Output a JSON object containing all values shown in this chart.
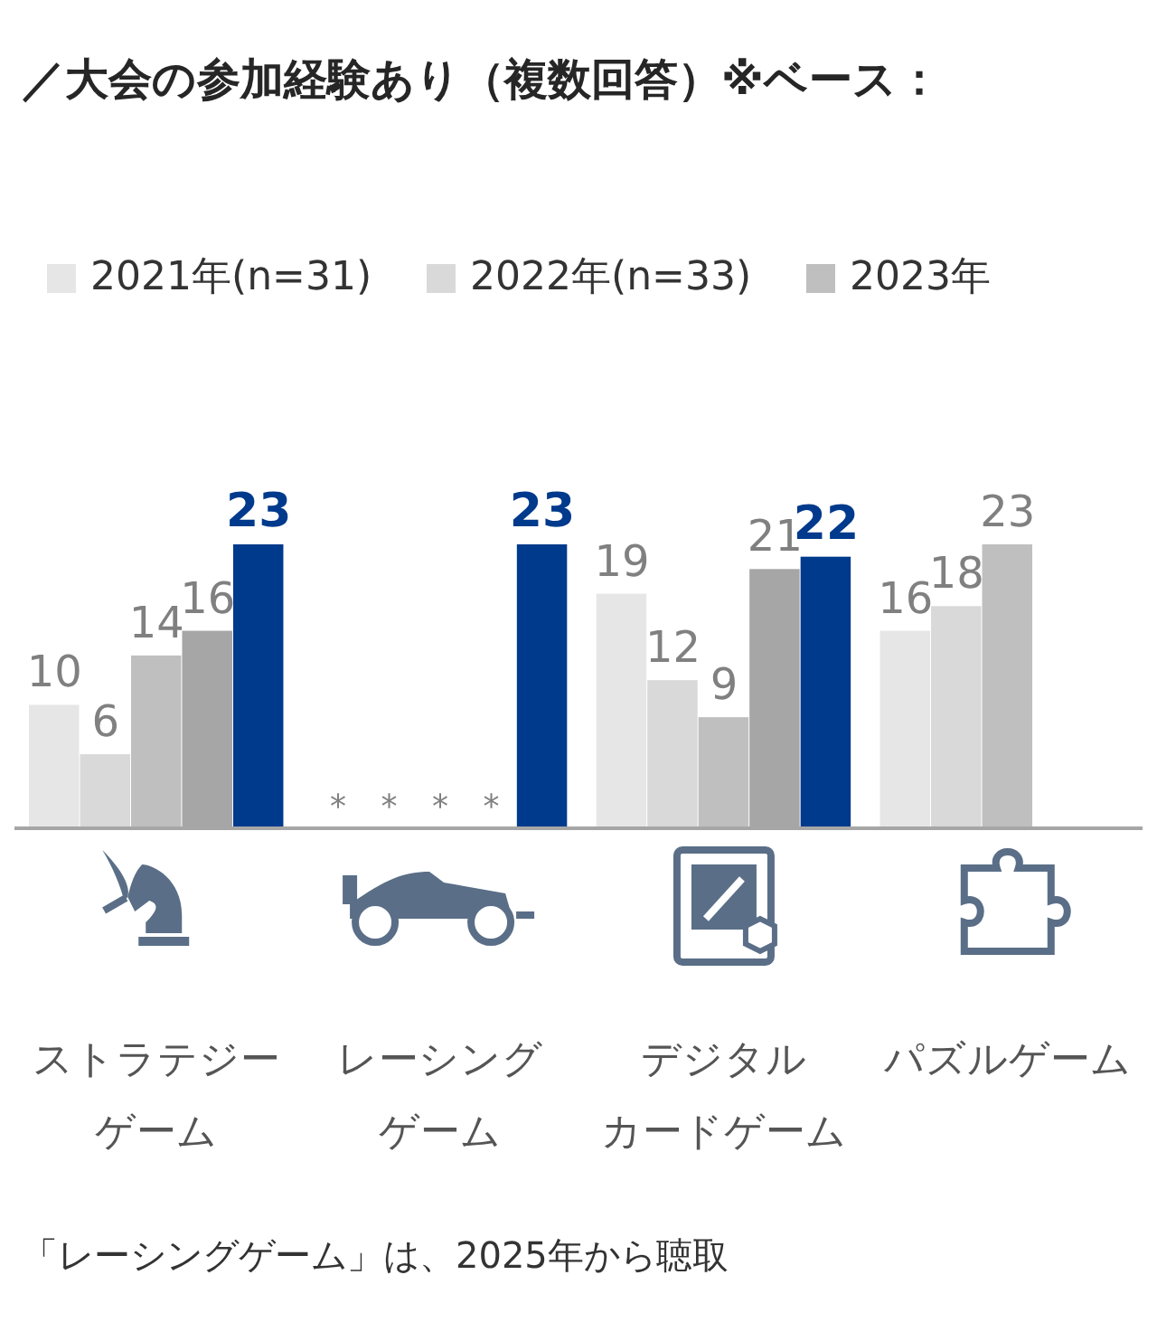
{
  "chart_data": {
    "type": "bar",
    "title": "／大会の参加経験あり（複数回答）※ベース：",
    "categories": [
      "ストラテジーゲーム",
      "レーシングゲーム",
      "デジタルカードゲーム",
      "パズルゲーム"
    ],
    "series": [
      {
        "name": "2021年(n=31)",
        "color": "#e6e6e6",
        "values": [
          10,
          null,
          19,
          16
        ],
        "value_labels": [
          "10",
          "*",
          "19",
          "16"
        ]
      },
      {
        "name": "2022年(n=33)",
        "color": "#d9d9d9",
        "values": [
          6,
          null,
          12,
          18
        ],
        "value_labels": [
          "6",
          "*",
          "12",
          "18"
        ]
      },
      {
        "name": "2023年",
        "color": "#bfbfbf",
        "values": [
          14,
          null,
          9,
          23
        ],
        "value_labels": [
          "14",
          "*",
          "9",
          "23"
        ]
      },
      {
        "color": "#a6a6a6",
        "values": [
          16,
          null,
          21,
          null
        ],
        "value_labels": [
          "16",
          "*",
          "21",
          null
        ]
      },
      {
        "color": "#003a8c",
        "values": [
          23,
          23,
          22,
          null
        ],
        "value_labels": [
          "23",
          "23",
          "22",
          null
        ]
      }
    ],
    "legend": "top left",
    "annotations": [
      "「レーシングゲーム」は、2025年から聴取"
    ]
  }
}
